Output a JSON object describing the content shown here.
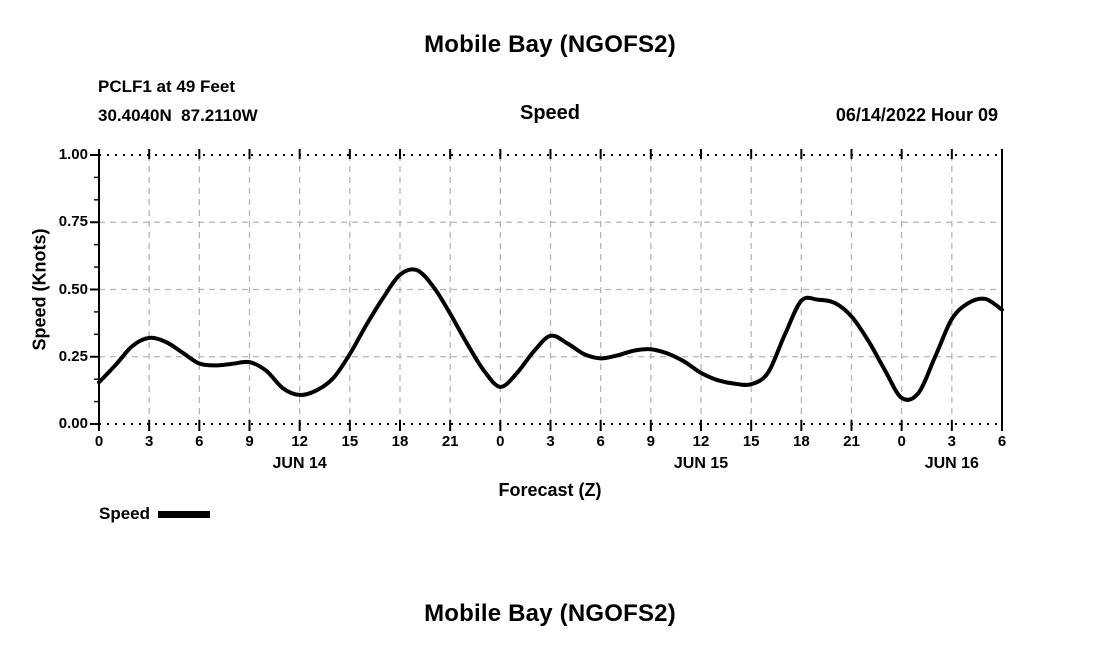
{
  "header": {
    "title": "Mobile Bay (NGOFS2)",
    "station_line1": "PCLF1 at 49 Feet",
    "station_line2": "30.4040N  87.2110W",
    "panel_label": "Speed",
    "datetime_label": "06/14/2022 Hour 09"
  },
  "chart_data": {
    "type": "line",
    "title": "Speed",
    "xlabel": "Forecast (Z)",
    "ylabel": "Speed (Knots)",
    "ylim": [
      0.0,
      1.0
    ],
    "ytick_values": [
      0.0,
      0.25,
      0.5,
      0.75,
      1.0
    ],
    "ytick_labels": [
      "0.00",
      "0.25",
      "0.50",
      "0.75",
      "1.00"
    ],
    "x_hours_range": [
      0,
      54
    ],
    "x_major_step_hours": 3,
    "xtick_labels": [
      "0",
      "3",
      "6",
      "9",
      "12",
      "15",
      "18",
      "21",
      "0",
      "3",
      "6",
      "9",
      "12",
      "15",
      "18",
      "21",
      "0",
      "3",
      "6"
    ],
    "date_labels": [
      {
        "label": "JUN 14",
        "center_hour": 12
      },
      {
        "label": "JUN 15",
        "center_hour": 36
      },
      {
        "label": "JUN 16",
        "center_hour": 51
      }
    ],
    "grid": {
      "on": true,
      "style": "dashed",
      "color": "#b5b5b5",
      "boundary_style": "dotted-black"
    },
    "legend_position": "bottom-left",
    "series": [
      {
        "name": "Speed",
        "color": "#000000",
        "x_hours": [
          0,
          1,
          2,
          3,
          4,
          5,
          6,
          7,
          8,
          9,
          10,
          11,
          12,
          13,
          14,
          15,
          16,
          17,
          18,
          19,
          20,
          21,
          22,
          23,
          24,
          25,
          26,
          27,
          28,
          29,
          30,
          31,
          32,
          33,
          34,
          35,
          36,
          37,
          38,
          39,
          40,
          41,
          42,
          43,
          44,
          45,
          46,
          47,
          48,
          49,
          50,
          51,
          52,
          53,
          54
        ],
        "values": [
          0.155,
          0.22,
          0.29,
          0.32,
          0.305,
          0.265,
          0.225,
          0.218,
          0.224,
          0.23,
          0.198,
          0.133,
          0.108,
          0.125,
          0.17,
          0.26,
          0.37,
          0.47,
          0.555,
          0.572,
          0.51,
          0.41,
          0.3,
          0.2,
          0.138,
          0.19,
          0.27,
          0.328,
          0.3,
          0.26,
          0.244,
          0.255,
          0.273,
          0.278,
          0.262,
          0.232,
          0.19,
          0.163,
          0.15,
          0.148,
          0.19,
          0.33,
          0.458,
          0.462,
          0.45,
          0.4,
          0.31,
          0.2,
          0.097,
          0.115,
          0.25,
          0.39,
          0.45,
          0.465,
          0.425
        ]
      }
    ]
  },
  "legend": {
    "label": "Speed",
    "color": "#000000"
  },
  "bottom_title": "Mobile Bay (NGOFS2)",
  "colors": {
    "line": "#000000",
    "grid": "#b5b5b5",
    "background": "#ffffff",
    "text": "#000000"
  }
}
